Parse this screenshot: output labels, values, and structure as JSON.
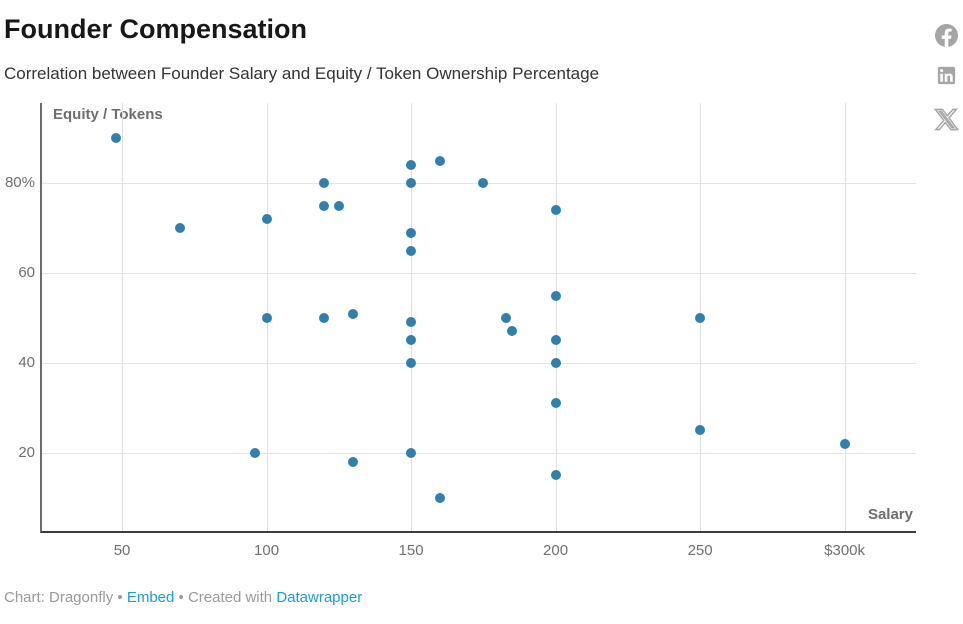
{
  "title": "Founder Compensation",
  "subtitle": "Correlation between Founder Salary and Equity / Token Ownership Percentage",
  "share": {
    "icons": [
      "facebook-share-icon",
      "linkedin-share-icon",
      "x-share-icon"
    ]
  },
  "footer": {
    "attribution": "Chart: Dragonfly",
    "bullet": "•",
    "embed_label": "Embed",
    "created_with_label": "Created with",
    "datawrapper_label": "Datawrapper"
  },
  "colors": {
    "dot": "#2e80ad",
    "link_blue": "#1d9be4",
    "grid": "#e2e2e2",
    "tick_text": "#6f6f6f",
    "axis_title_text": "#6e6e6e",
    "icon_gray": "#a5a5a5"
  },
  "chart_data": {
    "type": "scatter",
    "title": "Founder Compensation",
    "xlabel": "Salary",
    "ylabel": "Equity / Tokens",
    "x_unit": "USD thousands",
    "y_unit": "percent",
    "x_domain": [
      22.3,
      325.4
    ],
    "y_domain": [
      2.1,
      97.9
    ],
    "grid": true,
    "x_ticks": [
      {
        "value": 50,
        "label": "50"
      },
      {
        "value": 100,
        "label": "100"
      },
      {
        "value": 150,
        "label": "150"
      },
      {
        "value": 200,
        "label": "200"
      },
      {
        "value": 250,
        "label": "250"
      },
      {
        "value": 300,
        "label": "$300k"
      }
    ],
    "y_ticks": [
      {
        "value": 20,
        "label": "20"
      },
      {
        "value": 40,
        "label": "40"
      },
      {
        "value": 60,
        "label": "60"
      },
      {
        "value": 80,
        "label": "80%"
      }
    ],
    "points": [
      [
        48,
        90
      ],
      [
        70,
        70
      ],
      [
        96,
        20
      ],
      [
        100,
        50
      ],
      [
        100,
        72
      ],
      [
        120,
        50
      ],
      [
        120,
        75
      ],
      [
        120,
        80
      ],
      [
        125,
        75
      ],
      [
        130,
        18
      ],
      [
        130,
        51
      ],
      [
        150,
        20
      ],
      [
        150,
        40
      ],
      [
        150,
        45
      ],
      [
        150,
        49
      ],
      [
        150,
        65
      ],
      [
        150,
        69
      ],
      [
        150,
        80
      ],
      [
        150,
        84
      ],
      [
        160,
        10
      ],
      [
        160,
        85
      ],
      [
        175,
        80
      ],
      [
        183,
        50
      ],
      [
        185,
        47
      ],
      [
        200,
        15
      ],
      [
        200,
        31
      ],
      [
        200,
        40
      ],
      [
        200,
        45
      ],
      [
        200,
        55
      ],
      [
        200,
        74
      ],
      [
        250,
        25
      ],
      [
        250,
        50
      ],
      [
        300,
        22
      ]
    ]
  }
}
